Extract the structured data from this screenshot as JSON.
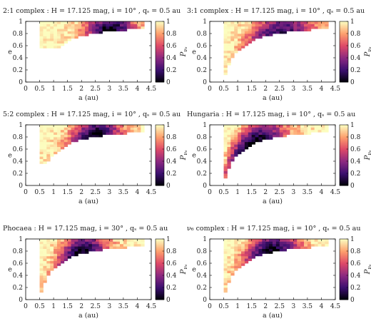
{
  "figure": {
    "colormap": [
      "#000004",
      "#3b0f70",
      "#8c2981",
      "#de4968",
      "#fe9f6d",
      "#fcfdbf"
    ],
    "colorbar_ticks": [
      "0",
      "0.2",
      "0.4",
      "0.6",
      "0.8",
      "1"
    ],
    "colorbar_label": "P",
    "colorbar_label_sub": "ν₆"
  },
  "chart_data": [
    {
      "type": "heatmap",
      "title": "2:1 complex : H = 17.125 mag, i = 10° , qₛ = 0.5 au",
      "xlabel": "a (au)",
      "ylabel": "e",
      "xlim": [
        0,
        4.5
      ],
      "ylim": [
        0,
        1
      ],
      "xticks": [
        "0",
        "0.5",
        "1",
        "1.5",
        "2",
        "2.5",
        "3",
        "3.5",
        "4",
        "4.5"
      ],
      "yticks": [
        "0",
        "0.2",
        "0.4",
        "0.6",
        "0.8",
        "1"
      ],
      "value_range": [
        0,
        1
      ],
      "source": "2:1 complex",
      "profile": {
        "center_a": 3.0,
        "spread": 0.9,
        "e_min_at_a1": 0.55,
        "upper_e": 0.98,
        "a_min": 0.55,
        "a_max": 4.25,
        "depth": 1.0
      }
    },
    {
      "type": "heatmap",
      "title": "3:1 complex : H = 17.125 mag, i = 10° , qₛ = 0.5 au",
      "xlabel": "a (au)",
      "ylabel": "e",
      "xlim": [
        0,
        4.5
      ],
      "ylim": [
        0,
        1
      ],
      "xticks": [
        "0",
        "0.5",
        "1",
        "1.5",
        "2",
        "2.5",
        "3",
        "3.5",
        "4",
        "4.5"
      ],
      "yticks": [
        "0",
        "0.2",
        "0.4",
        "0.6",
        "0.8",
        "1"
      ],
      "value_range": [
        0,
        1
      ],
      "source": "3:1 complex",
      "profile": {
        "center_a": 2.5,
        "spread": 1.2,
        "e_min_at_a1": 0.0,
        "upper_e": 0.98,
        "a_min": 0.55,
        "a_max": 4.25,
        "depth": 0.85
      }
    },
    {
      "type": "heatmap",
      "title": "5:2 complex : H = 17.125 mag, i = 10° , qₛ = 0.5 au",
      "xlabel": "a (au)",
      "ylabel": "e",
      "xlim": [
        0,
        4.5
      ],
      "ylim": [
        0,
        1
      ],
      "xticks": [
        "0",
        "0.5",
        "1",
        "1.5",
        "2",
        "2.5",
        "3",
        "3.5",
        "4",
        "4.5"
      ],
      "yticks": [
        "0",
        "0.2",
        "0.4",
        "0.6",
        "0.8",
        "1"
      ],
      "value_range": [
        0,
        1
      ],
      "source": "5:2 complex",
      "profile": {
        "center_a": 2.5,
        "spread": 0.9,
        "e_min_at_a1": 0.35,
        "upper_e": 0.98,
        "a_min": 0.55,
        "a_max": 4.25,
        "depth": 1.0
      }
    },
    {
      "type": "heatmap",
      "title": "Hungaria : H = 17.125 mag, i = 10° , qₛ = 0.5 au",
      "xlabel": "a (au)",
      "ylabel": "e",
      "xlim": [
        0,
        4.5
      ],
      "ylim": [
        0,
        1
      ],
      "xticks": [
        "0",
        "0.5",
        "1",
        "1.5",
        "2",
        "2.5",
        "3",
        "3.5",
        "4",
        "4.5"
      ],
      "yticks": [
        "0",
        "0.2",
        "0.4",
        "0.6",
        "0.8",
        "1"
      ],
      "value_range": [
        0,
        1
      ],
      "source": "Hungaria",
      "profile": {
        "center_a": 1.6,
        "spread": 1.1,
        "e_min_at_a1": 0.0,
        "upper_e": 0.98,
        "a_min": 0.5,
        "a_max": 4.25,
        "depth": 1.0
      }
    },
    {
      "type": "heatmap",
      "title": "Phocaea : H = 17.125 mag, i = 30° , qₛ = 0.5 au",
      "xlabel": "a (au)",
      "ylabel": "e",
      "xlim": [
        0,
        4.5
      ],
      "ylim": [
        0,
        1
      ],
      "xticks": [
        "0",
        "0.5",
        "1",
        "1.5",
        "2",
        "2.5",
        "3",
        "3.5",
        "4",
        "4.5"
      ],
      "yticks": [
        "0",
        "0.2",
        "0.4",
        "0.6",
        "0.8",
        "1"
      ],
      "value_range": [
        0,
        1
      ],
      "source": "Phocaea",
      "profile": {
        "center_a": 2.0,
        "spread": 0.9,
        "e_min_at_a1": 0.0,
        "upper_e": 0.98,
        "a_min": 0.55,
        "a_max": 4.25,
        "depth": 1.0
      }
    },
    {
      "type": "heatmap",
      "title": "ν₆ complex : H = 17.125 mag, i = 10° , qₛ = 0.5 au",
      "xlabel": "a (au)",
      "ylabel": "e",
      "xlim": [
        0,
        4.5
      ],
      "ylim": [
        0,
        1
      ],
      "xticks": [
        "0",
        "0.5",
        "1",
        "1.5",
        "2",
        "2.5",
        "3",
        "3.5",
        "4",
        "4.5"
      ],
      "yticks": [
        "0",
        "0.2",
        "0.4",
        "0.6",
        "0.8",
        "1"
      ],
      "value_range": [
        0,
        1
      ],
      "source": "ν6 complex",
      "profile": {
        "center_a": 2.2,
        "spread": 1.0,
        "e_min_at_a1": 0.0,
        "upper_e": 0.98,
        "a_min": 0.55,
        "a_max": 4.25,
        "depth": 1.0
      }
    }
  ]
}
